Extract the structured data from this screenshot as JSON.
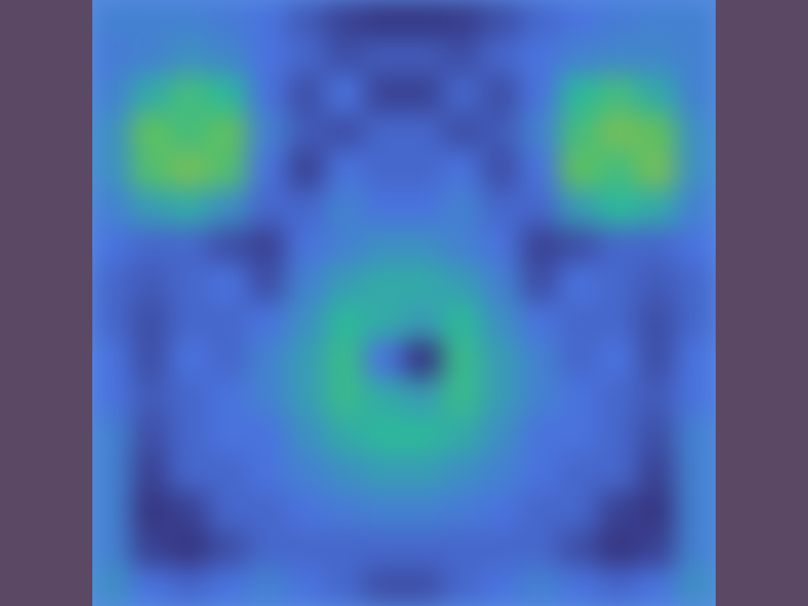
{
  "chart_data": {
    "type": "heatmap",
    "tick_labels": false,
    "xlim": [
      0,
      16
    ],
    "ylim": [
      0,
      16
    ],
    "zlim": [
      0,
      1
    ],
    "cells": [
      [
        0.4,
        0.4,
        0.4,
        0.38,
        0.35,
        0.25,
        0.15,
        0.1,
        0.1,
        0.12,
        0.2,
        0.3,
        0.35,
        0.38,
        0.4,
        0.4
      ],
      [
        0.38,
        0.4,
        0.45,
        0.42,
        0.35,
        0.3,
        0.2,
        0.25,
        0.25,
        0.2,
        0.3,
        0.35,
        0.4,
        0.42,
        0.42,
        0.4
      ],
      [
        0.4,
        0.55,
        0.7,
        0.6,
        0.35,
        0.2,
        0.35,
        0.15,
        0.15,
        0.3,
        0.2,
        0.35,
        0.6,
        0.7,
        0.55,
        0.4
      ],
      [
        0.45,
        0.8,
        0.7,
        0.8,
        0.4,
        0.25,
        0.2,
        0.3,
        0.3,
        0.2,
        0.25,
        0.4,
        0.7,
        0.85,
        0.8,
        0.45
      ],
      [
        0.45,
        0.75,
        0.85,
        0.75,
        0.35,
        0.15,
        0.35,
        0.3,
        0.3,
        0.35,
        0.2,
        0.35,
        0.8,
        0.7,
        0.85,
        0.45
      ],
      [
        0.4,
        0.5,
        0.55,
        0.45,
        0.3,
        0.3,
        0.4,
        0.35,
        0.35,
        0.4,
        0.3,
        0.3,
        0.5,
        0.6,
        0.55,
        0.4
      ],
      [
        0.35,
        0.3,
        0.3,
        0.2,
        0.15,
        0.35,
        0.4,
        0.45,
        0.45,
        0.4,
        0.35,
        0.15,
        0.2,
        0.3,
        0.3,
        0.35
      ],
      [
        0.3,
        0.25,
        0.3,
        0.35,
        0.2,
        0.4,
        0.5,
        0.55,
        0.55,
        0.5,
        0.4,
        0.2,
        0.35,
        0.3,
        0.25,
        0.3
      ],
      [
        0.3,
        0.2,
        0.3,
        0.3,
        0.35,
        0.45,
        0.6,
        0.55,
        0.5,
        0.6,
        0.45,
        0.35,
        0.3,
        0.3,
        0.2,
        0.3
      ],
      [
        0.35,
        0.2,
        0.35,
        0.3,
        0.4,
        0.5,
        0.65,
        0.35,
        0.1,
        0.65,
        0.5,
        0.4,
        0.3,
        0.35,
        0.2,
        0.35
      ],
      [
        0.35,
        0.25,
        0.3,
        0.35,
        0.4,
        0.5,
        0.65,
        0.55,
        0.5,
        0.65,
        0.5,
        0.4,
        0.35,
        0.3,
        0.25,
        0.35
      ],
      [
        0.4,
        0.2,
        0.3,
        0.35,
        0.35,
        0.45,
        0.55,
        0.6,
        0.6,
        0.55,
        0.45,
        0.35,
        0.35,
        0.3,
        0.2,
        0.4
      ],
      [
        0.4,
        0.15,
        0.3,
        0.3,
        0.35,
        0.4,
        0.45,
        0.5,
        0.5,
        0.45,
        0.4,
        0.35,
        0.3,
        0.3,
        0.15,
        0.4
      ],
      [
        0.4,
        0.1,
        0.15,
        0.3,
        0.3,
        0.35,
        0.38,
        0.4,
        0.4,
        0.38,
        0.35,
        0.3,
        0.3,
        0.15,
        0.1,
        0.4
      ],
      [
        0.4,
        0.15,
        0.1,
        0.2,
        0.3,
        0.3,
        0.3,
        0.3,
        0.3,
        0.3,
        0.3,
        0.3,
        0.2,
        0.1,
        0.15,
        0.4
      ],
      [
        0.45,
        0.35,
        0.3,
        0.35,
        0.4,
        0.35,
        0.3,
        0.2,
        0.2,
        0.3,
        0.35,
        0.4,
        0.35,
        0.3,
        0.35,
        0.45
      ]
    ]
  }
}
